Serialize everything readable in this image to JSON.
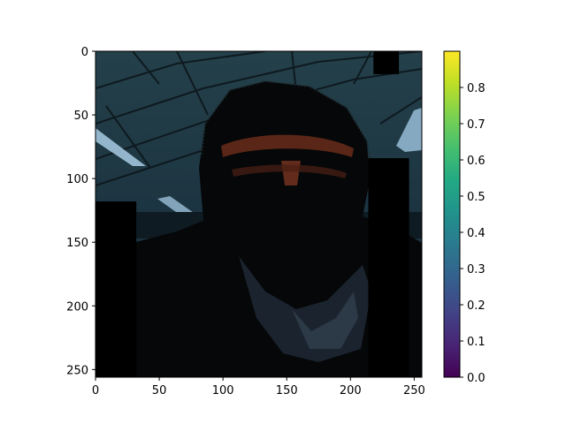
{
  "chart_data": {
    "type": "heatmap",
    "title": "",
    "xlabel": "",
    "ylabel": "",
    "image_size": [
      256,
      256
    ],
    "xlim": [
      0,
      256
    ],
    "ylim": [
      256,
      0
    ],
    "x_ticks": [
      0,
      50,
      100,
      150,
      200,
      250
    ],
    "y_ticks": [
      0,
      50,
      100,
      150,
      200,
      250
    ],
    "colorbar": {
      "colormap": "viridis",
      "range": [
        0.0,
        0.9
      ],
      "ticks": [
        0.0,
        0.1,
        0.2,
        0.3,
        0.4,
        0.5,
        0.6,
        0.7,
        0.8
      ],
      "tick_labels": [
        "0.0",
        "0.1",
        "0.2",
        "0.3",
        "0.4",
        "0.5",
        "0.6",
        "0.7",
        "0.8"
      ]
    },
    "occlusion_patches": [
      {
        "x": [
          218,
          238
        ],
        "y": [
          0,
          18
        ]
      },
      {
        "x": [
          0,
          32
        ],
        "y": [
          118,
          256
        ]
      },
      {
        "x": [
          214,
          246
        ],
        "y": [
          84,
          256
        ]
      }
    ],
    "colors": {
      "ceiling": "#1f3a44",
      "ceiling_dark": "#0f1e24",
      "light_panel": "#9fc6e0",
      "person": "#050708",
      "shirt": "#2b3642",
      "highlight": "#8a3a22",
      "frame": "#000000"
    }
  }
}
